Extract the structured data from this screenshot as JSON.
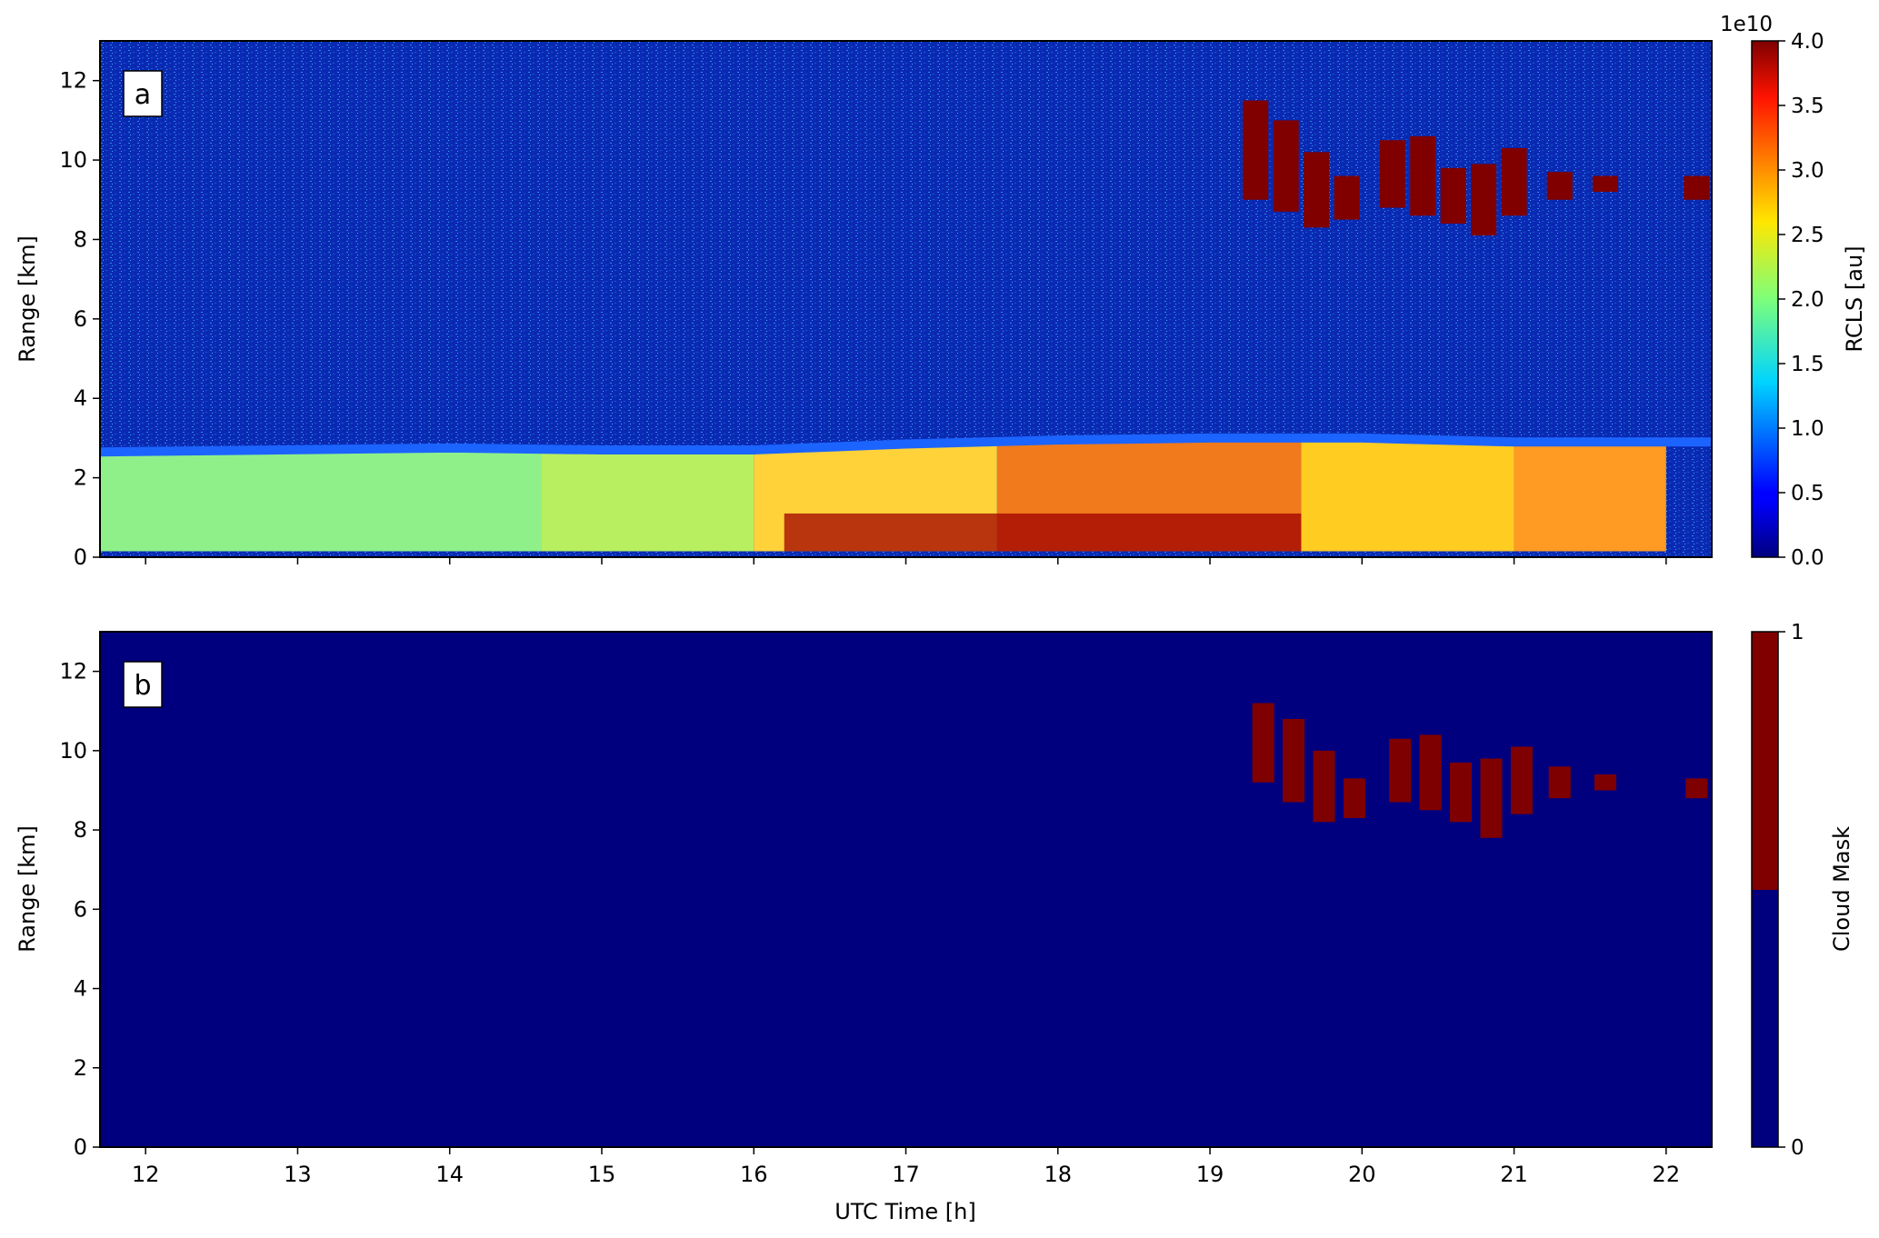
{
  "figure": {
    "xlabel": "UTC Time [h]",
    "xticks": [
      "12",
      "13",
      "14",
      "15",
      "16",
      "17",
      "18",
      "19",
      "20",
      "21",
      "22"
    ]
  },
  "chart_data": [
    {
      "type": "heatmap",
      "panel_label": "a",
      "ylabel": "Range [km]",
      "xlim": [
        11.7,
        22.3
      ],
      "ylim": [
        0,
        13
      ],
      "yticks": [
        "0",
        "2",
        "4",
        "6",
        "8",
        "10",
        "12"
      ],
      "colorbar": {
        "label": "RCLS [au]",
        "offset_text": "1e10",
        "colormap": "jet",
        "range": [
          0.0,
          4.0
        ],
        "ticks": [
          "0.0",
          "0.5",
          "1.0",
          "1.5",
          "2.0",
          "2.5",
          "3.0",
          "3.5",
          "4.0"
        ]
      },
      "features": {
        "background_color": "#0a2ab4",
        "boundary_layer_top_km": [
          [
            11.7,
            2.65
          ],
          [
            14,
            2.75
          ],
          [
            15,
            2.7
          ],
          [
            16,
            2.7
          ],
          [
            17,
            2.85
          ],
          [
            18,
            2.95
          ],
          [
            19,
            3.0
          ],
          [
            20,
            3.0
          ],
          [
            21,
            2.9
          ],
          [
            22,
            2.9
          ],
          [
            22.3,
            2.9
          ]
        ],
        "boundary_layer_segments": [
          {
            "x0": 11.7,
            "x1": 14.6,
            "color": "#8ff08a",
            "value": 2.0
          },
          {
            "x0": 14.6,
            "x1": 16.0,
            "color": "#b8ef60",
            "value": 2.3
          },
          {
            "x0": 16.0,
            "x1": 17.6,
            "color": "#ffd23a",
            "value": 2.8
          },
          {
            "x0": 17.6,
            "x1": 19.6,
            "color": "#f07a1c",
            "value": 3.4
          },
          {
            "x0": 19.6,
            "x1": 21.0,
            "color": "#ffcc22",
            "value": 2.8
          },
          {
            "x0": 21.0,
            "x1": 22.0,
            "color": "#ff9a22",
            "value": 3.2
          }
        ],
        "cirrus_km": [
          [
            19.3,
            9.0,
            11.5
          ],
          [
            19.5,
            8.7,
            11.0
          ],
          [
            19.7,
            8.3,
            10.2
          ],
          [
            19.9,
            8.5,
            9.6
          ],
          [
            20.2,
            8.8,
            10.5
          ],
          [
            20.4,
            8.6,
            10.6
          ],
          [
            20.6,
            8.4,
            9.8
          ],
          [
            20.8,
            8.1,
            9.9
          ],
          [
            21.0,
            8.6,
            10.3
          ],
          [
            21.3,
            9.0,
            9.7
          ],
          [
            21.6,
            9.2,
            9.6
          ],
          [
            22.2,
            9.0,
            9.6
          ]
        ]
      }
    },
    {
      "type": "heatmap",
      "panel_label": "b",
      "ylabel": "Range [km]",
      "xlim": [
        11.7,
        22.3
      ],
      "ylim": [
        0,
        13
      ],
      "yticks": [
        "0",
        "2",
        "4",
        "6",
        "8",
        "10",
        "12"
      ],
      "colorbar": {
        "label": "Cloud Mask",
        "colors": [
          "#00007f",
          "#800000"
        ],
        "ticks": [
          "0",
          "1"
        ]
      },
      "features": {
        "background_color": "#00007f",
        "cloud_color": "#7f0000",
        "cloud_mask_km": [
          [
            19.35,
            9.2,
            11.2
          ],
          [
            19.55,
            8.7,
            10.8
          ],
          [
            19.75,
            8.2,
            10.0
          ],
          [
            19.95,
            8.3,
            9.3
          ],
          [
            20.25,
            8.7,
            10.3
          ],
          [
            20.45,
            8.5,
            10.4
          ],
          [
            20.65,
            8.2,
            9.7
          ],
          [
            20.85,
            7.8,
            9.8
          ],
          [
            21.05,
            8.4,
            10.1
          ],
          [
            21.3,
            8.8,
            9.6
          ],
          [
            21.6,
            9.0,
            9.4
          ],
          [
            22.2,
            8.8,
            9.3
          ]
        ]
      }
    }
  ]
}
